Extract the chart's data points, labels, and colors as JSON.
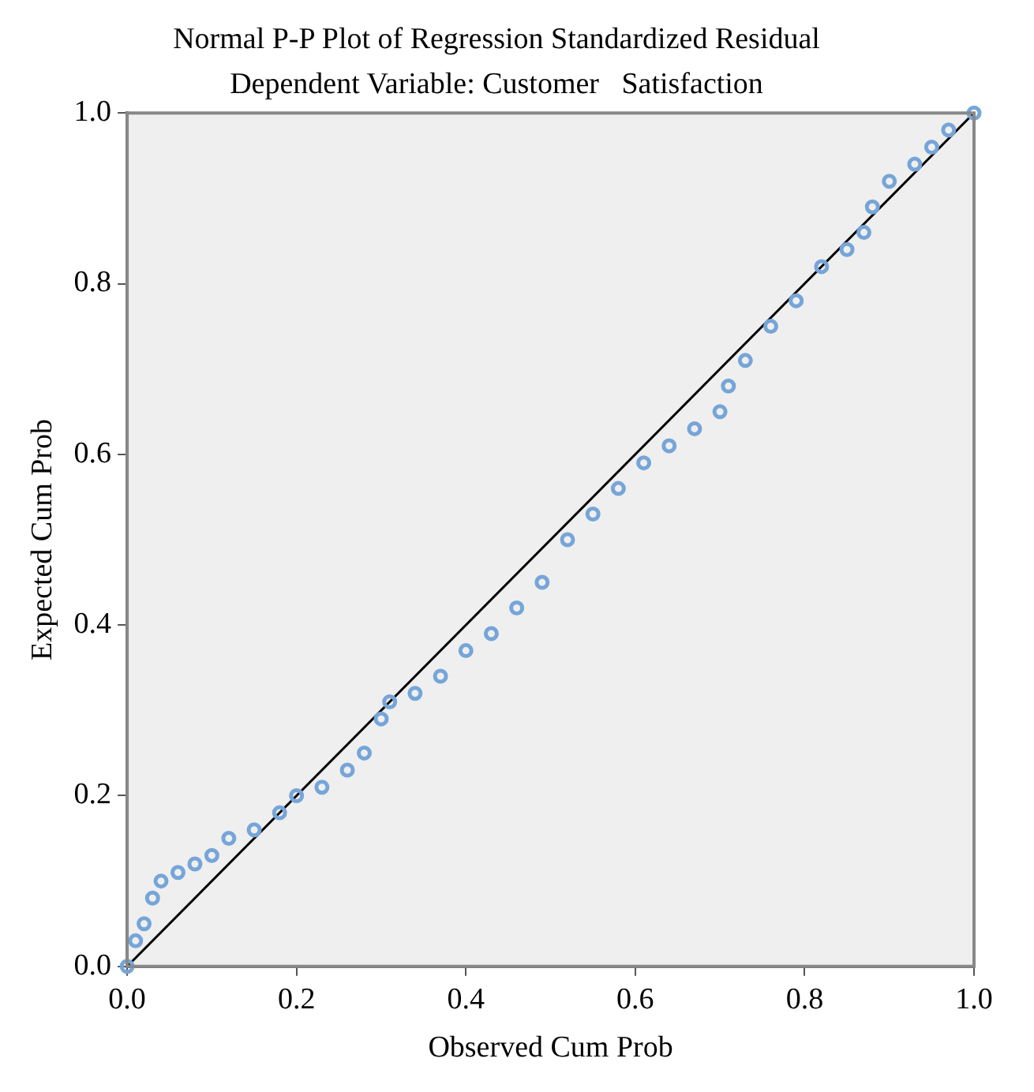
{
  "chart_data": {
    "type": "scatter",
    "title": "Normal P-P Plot of Regression Standardized Residual",
    "subtitle": "Dependent Variable: Customer   Satisfaction",
    "xlabel": "Observed Cum Prob",
    "ylabel": "Expected Cum Prob",
    "xlim": [
      0,
      1
    ],
    "ylim": [
      0,
      1
    ],
    "xticks": [
      {
        "value": 0,
        "label": "0.0"
      },
      {
        "value": 0.2,
        "label": "0.2"
      },
      {
        "value": 0.4,
        "label": "0.4"
      },
      {
        "value": 0.6,
        "label": "0.6"
      },
      {
        "value": 0.8,
        "label": "0.8"
      },
      {
        "value": 1,
        "label": "1.0"
      }
    ],
    "yticks": [
      {
        "value": 0,
        "label": "0.0"
      },
      {
        "value": 0.2,
        "label": "0.2"
      },
      {
        "value": 0.4,
        "label": "0.4"
      },
      {
        "value": 0.6,
        "label": "0.6"
      },
      {
        "value": 0.8,
        "label": "0.8"
      },
      {
        "value": 1,
        "label": "1.0"
      }
    ],
    "grid": false,
    "legend": false,
    "marker": "circle",
    "series": [
      {
        "color": "#76a5d8",
        "x": [
          0,
          0.01,
          0.02,
          0.03,
          0.04,
          0.06,
          0.08,
          0.1,
          0.12,
          0.15,
          0.18,
          0.2,
          0.23,
          0.26,
          0.28,
          0.3,
          0.31,
          0.34,
          0.37,
          0.4,
          0.43,
          0.46,
          0.49,
          0.52,
          0.55,
          0.58,
          0.61,
          0.64,
          0.67,
          0.7,
          0.71,
          0.73,
          0.76,
          0.79,
          0.82,
          0.85,
          0.87,
          0.88,
          0.9,
          0.93,
          0.95,
          0.97,
          1
        ],
        "values": [
          0,
          0.03,
          0.05,
          0.08,
          0.1,
          0.11,
          0.12,
          0.13,
          0.15,
          0.16,
          0.18,
          0.2,
          0.21,
          0.23,
          0.25,
          0.29,
          0.31,
          0.32,
          0.34,
          0.37,
          0.39,
          0.42,
          0.45,
          0.5,
          0.53,
          0.56,
          0.59,
          0.61,
          0.63,
          0.65,
          0.68,
          0.71,
          0.75,
          0.78,
          0.82,
          0.84,
          0.86,
          0.89,
          0.92,
          0.94,
          0.96,
          0.98,
          1
        ]
      },
      {
        "type": "line",
        "color": "#000000",
        "marker": "none",
        "line_style": "solid",
        "x": [
          0,
          1
        ],
        "values": [
          0,
          1
        ]
      }
    ]
  }
}
